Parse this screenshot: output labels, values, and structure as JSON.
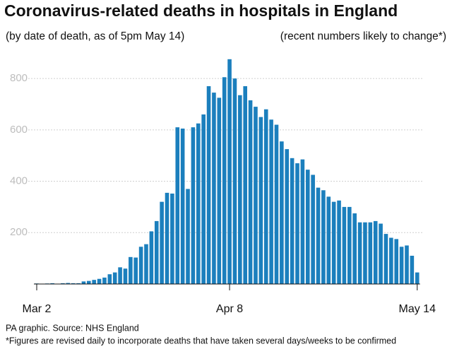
{
  "chart_data": {
    "type": "bar",
    "title": "Coronavirus-related deaths in hospitals in England",
    "subtitle": "(by date of death, as of 5pm May 14)",
    "annotation": "(recent numbers likely to change*)",
    "source": "PA graphic. Source: NHS England",
    "note": "*Figures are revised daily to incorporate deaths that have taken several days/weeks to be confirmed",
    "categories": [
      "Mar 2",
      null,
      null,
      null,
      null,
      null,
      null,
      null,
      null,
      null,
      null,
      null,
      null,
      null,
      null,
      null,
      null,
      null,
      null,
      null,
      null,
      null,
      null,
      null,
      null,
      null,
      null,
      null,
      null,
      null,
      null,
      null,
      null,
      null,
      null,
      null,
      null,
      "Apr 8",
      null,
      null,
      null,
      null,
      null,
      null,
      null,
      null,
      null,
      null,
      null,
      null,
      null,
      null,
      null,
      null,
      null,
      null,
      null,
      null,
      null,
      null,
      null,
      null,
      null,
      null,
      null,
      null,
      null,
      null,
      null,
      null,
      null,
      null,
      null,
      "May 14"
    ],
    "values": [
      2,
      1,
      2,
      3,
      1,
      3,
      4,
      3,
      3,
      10,
      12,
      16,
      20,
      25,
      38,
      45,
      65,
      60,
      105,
      103,
      145,
      155,
      205,
      245,
      320,
      355,
      352,
      610,
      605,
      370,
      610,
      625,
      660,
      770,
      745,
      725,
      805,
      875,
      800,
      735,
      770,
      715,
      690,
      650,
      680,
      640,
      620,
      555,
      525,
      490,
      470,
      485,
      445,
      425,
      375,
      365,
      340,
      320,
      325,
      300,
      300,
      275,
      240,
      240,
      240,
      245,
      235,
      195,
      180,
      175,
      145,
      150,
      110,
      45
    ],
    "color": "#1b7fbd",
    "ylim": [
      0,
      880
    ],
    "yticks": [
      200,
      400,
      600,
      800
    ],
    "grid": true
  }
}
